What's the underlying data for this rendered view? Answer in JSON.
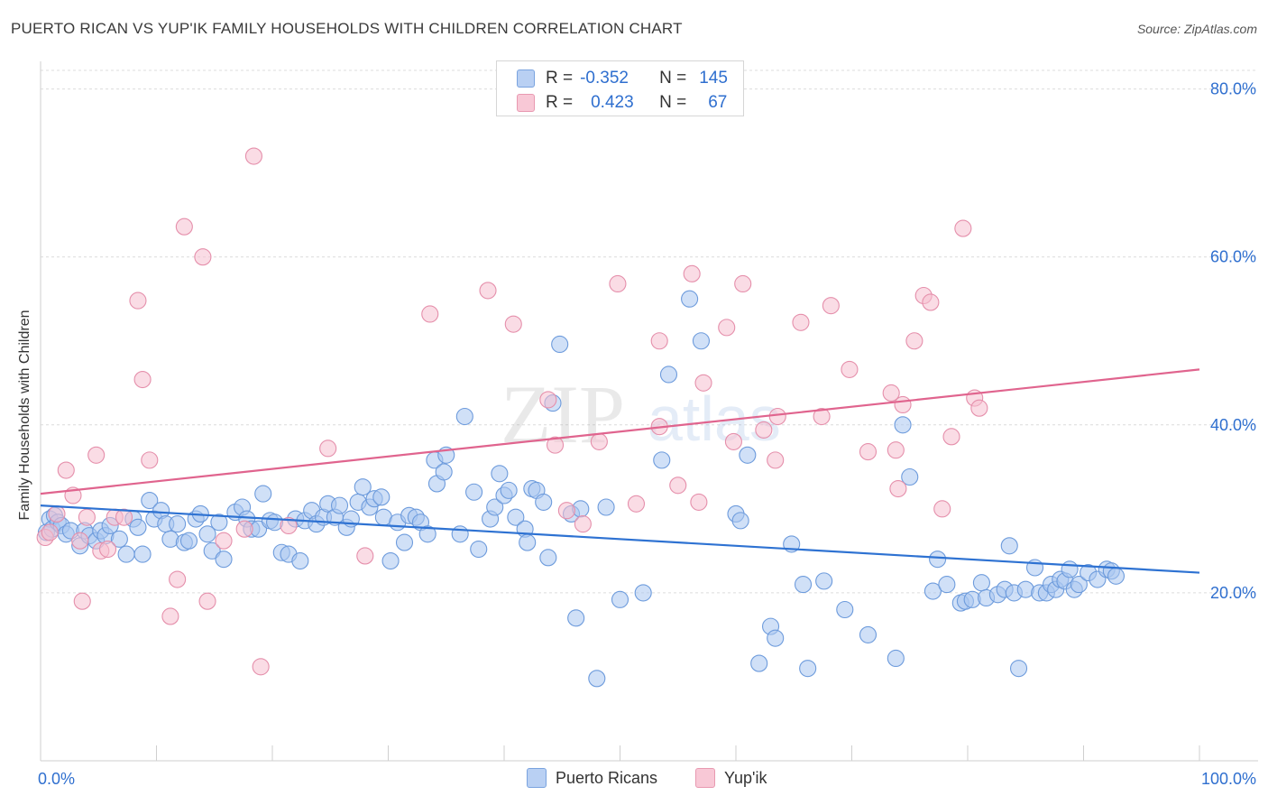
{
  "title": "PUERTO RICAN VS YUP'IK FAMILY HOUSEHOLDS WITH CHILDREN CORRELATION CHART",
  "source": "Source: ZipAtlas.com",
  "watermark": {
    "part1": "ZIP",
    "part2": "atlas"
  },
  "legend": {
    "rows": [
      {
        "r_label": "R =",
        "r_value": "-0.352",
        "n_label": "N =",
        "n_value": "145"
      },
      {
        "r_label": "R =",
        "r_value": "0.423",
        "n_label": "N =",
        "n_value": "67"
      }
    ]
  },
  "bottom_legend": {
    "blue": "Puerto Ricans",
    "pink": "Yup'ik"
  },
  "colors": {
    "blue_fill": "#a9c6f0",
    "blue_stroke": "#6d9bdc",
    "blue_line": "#2e72d2",
    "pink_fill": "#f6bfd0",
    "pink_stroke": "#e58fab",
    "pink_line": "#e0648e",
    "tick_label": "#2f6fcf"
  },
  "chart_data": {
    "type": "scatter",
    "ylabel": "Family Households with Children",
    "x_tick_labels": [
      "0.0%",
      "100.0%"
    ],
    "y_tick_labels": [
      "20.0%",
      "40.0%",
      "60.0%",
      "80.0%"
    ],
    "xlim": [
      0,
      100
    ],
    "ylim": [
      0,
      82
    ],
    "y_ticks": [
      20,
      40,
      60,
      80
    ],
    "grid": true,
    "series": [
      {
        "name": "Puerto Ricans",
        "r": -0.352,
        "n": 145,
        "trend": {
          "x0": 0,
          "y0": 30.4,
          "x1": 100,
          "y1": 22.4
        },
        "points": [
          [
            0.5,
            27.2
          ],
          [
            0.8,
            28.8
          ],
          [
            1.0,
            27.6
          ],
          [
            1.2,
            29.2
          ],
          [
            1.5,
            28.4
          ],
          [
            1.8,
            28.0
          ],
          [
            2.2,
            27.0
          ],
          [
            2.6,
            27.4
          ],
          [
            3.4,
            25.6
          ],
          [
            3.8,
            27.4
          ],
          [
            4.2,
            26.8
          ],
          [
            4.8,
            26.2
          ],
          [
            5.2,
            27.4
          ],
          [
            5.6,
            26.8
          ],
          [
            6.0,
            28.0
          ],
          [
            6.8,
            26.4
          ],
          [
            7.4,
            24.6
          ],
          [
            8.0,
            28.8
          ],
          [
            8.4,
            27.8
          ],
          [
            8.8,
            24.6
          ],
          [
            9.4,
            31.0
          ],
          [
            9.8,
            28.8
          ],
          [
            10.4,
            29.8
          ],
          [
            10.8,
            28.2
          ],
          [
            11.2,
            26.4
          ],
          [
            11.8,
            28.2
          ],
          [
            12.4,
            26.0
          ],
          [
            12.8,
            26.2
          ],
          [
            13.4,
            28.8
          ],
          [
            13.8,
            29.4
          ],
          [
            14.4,
            27.0
          ],
          [
            14.8,
            25.0
          ],
          [
            15.4,
            28.4
          ],
          [
            15.8,
            24.0
          ],
          [
            16.8,
            29.6
          ],
          [
            17.4,
            30.2
          ],
          [
            17.8,
            28.8
          ],
          [
            18.2,
            27.6
          ],
          [
            18.8,
            27.6
          ],
          [
            19.2,
            31.8
          ],
          [
            19.8,
            28.6
          ],
          [
            20.2,
            28.4
          ],
          [
            20.8,
            24.8
          ],
          [
            21.4,
            24.6
          ],
          [
            22.0,
            28.8
          ],
          [
            22.4,
            23.8
          ],
          [
            22.8,
            28.6
          ],
          [
            23.4,
            29.8
          ],
          [
            23.8,
            28.2
          ],
          [
            24.4,
            29.0
          ],
          [
            24.8,
            30.6
          ],
          [
            25.4,
            29.0
          ],
          [
            25.8,
            30.4
          ],
          [
            26.4,
            27.8
          ],
          [
            26.8,
            28.8
          ],
          [
            27.4,
            30.8
          ],
          [
            27.8,
            32.6
          ],
          [
            28.4,
            30.2
          ],
          [
            28.8,
            31.2
          ],
          [
            29.4,
            31.4
          ],
          [
            29.6,
            29.0
          ],
          [
            30.2,
            23.8
          ],
          [
            30.8,
            28.4
          ],
          [
            31.4,
            26.0
          ],
          [
            31.8,
            29.2
          ],
          [
            32.4,
            29.0
          ],
          [
            32.8,
            28.4
          ],
          [
            33.4,
            27.0
          ],
          [
            34.0,
            35.8
          ],
          [
            34.2,
            33.0
          ],
          [
            34.8,
            34.4
          ],
          [
            35.0,
            36.4
          ],
          [
            36.2,
            27.0
          ],
          [
            36.6,
            41.0
          ],
          [
            37.4,
            32.0
          ],
          [
            37.8,
            25.2
          ],
          [
            38.8,
            28.8
          ],
          [
            39.2,
            30.2
          ],
          [
            39.6,
            34.2
          ],
          [
            40.0,
            31.6
          ],
          [
            40.4,
            32.2
          ],
          [
            41.0,
            29.0
          ],
          [
            41.8,
            27.6
          ],
          [
            42.0,
            26.0
          ],
          [
            42.4,
            32.4
          ],
          [
            42.8,
            32.2
          ],
          [
            43.4,
            30.8
          ],
          [
            43.8,
            24.2
          ],
          [
            44.2,
            42.6
          ],
          [
            44.8,
            49.6
          ],
          [
            45.8,
            29.4
          ],
          [
            46.2,
            17.0
          ],
          [
            46.6,
            30.0
          ],
          [
            48.0,
            9.8
          ],
          [
            48.8,
            30.2
          ],
          [
            50.0,
            19.2
          ],
          [
            52.0,
            20.0
          ],
          [
            53.6,
            35.8
          ],
          [
            54.2,
            46.0
          ],
          [
            56.0,
            55.0
          ],
          [
            57.0,
            50.0
          ],
          [
            60.0,
            29.4
          ],
          [
            60.4,
            28.6
          ],
          [
            61.0,
            36.4
          ],
          [
            62.0,
            11.6
          ],
          [
            63.0,
            16.0
          ],
          [
            63.4,
            14.6
          ],
          [
            64.8,
            25.8
          ],
          [
            65.8,
            21.0
          ],
          [
            66.2,
            11.0
          ],
          [
            67.6,
            21.4
          ],
          [
            69.4,
            18.0
          ],
          [
            71.4,
            15.0
          ],
          [
            73.8,
            12.2
          ],
          [
            74.4,
            40.0
          ],
          [
            75.0,
            33.8
          ],
          [
            77.0,
            20.2
          ],
          [
            77.4,
            24.0
          ],
          [
            78.2,
            21.0
          ],
          [
            79.4,
            18.8
          ],
          [
            79.8,
            19.0
          ],
          [
            80.4,
            19.2
          ],
          [
            81.2,
            21.2
          ],
          [
            81.6,
            19.4
          ],
          [
            82.6,
            19.8
          ],
          [
            83.2,
            20.4
          ],
          [
            83.6,
            25.6
          ],
          [
            84.0,
            20.0
          ],
          [
            84.4,
            11.0
          ],
          [
            85.0,
            20.4
          ],
          [
            85.8,
            23.0
          ],
          [
            86.2,
            20.0
          ],
          [
            86.8,
            20.0
          ],
          [
            87.2,
            21.0
          ],
          [
            87.6,
            20.4
          ],
          [
            88.0,
            21.6
          ],
          [
            88.4,
            21.4
          ],
          [
            88.8,
            22.8
          ],
          [
            89.2,
            20.4
          ],
          [
            89.6,
            21.0
          ],
          [
            90.4,
            22.4
          ],
          [
            91.2,
            21.6
          ],
          [
            92.0,
            22.8
          ],
          [
            92.4,
            22.6
          ],
          [
            92.8,
            22.0
          ]
        ]
      },
      {
        "name": "Yup'ik",
        "r": 0.423,
        "n": 67,
        "trend": {
          "x0": 0,
          "y0": 31.8,
          "x1": 100,
          "y1": 46.6
        },
        "points": [
          [
            0.4,
            26.6
          ],
          [
            0.8,
            27.2
          ],
          [
            1.4,
            29.4
          ],
          [
            2.2,
            34.6
          ],
          [
            2.8,
            31.6
          ],
          [
            3.4,
            26.2
          ],
          [
            3.6,
            19.0
          ],
          [
            4.0,
            29.0
          ],
          [
            4.8,
            36.4
          ],
          [
            5.2,
            25.0
          ],
          [
            5.8,
            25.2
          ],
          [
            6.4,
            29.0
          ],
          [
            7.2,
            29.0
          ],
          [
            8.4,
            54.8
          ],
          [
            8.8,
            45.4
          ],
          [
            9.4,
            35.8
          ],
          [
            11.2,
            17.2
          ],
          [
            11.8,
            21.6
          ],
          [
            12.4,
            63.6
          ],
          [
            14.0,
            60.0
          ],
          [
            14.4,
            19.0
          ],
          [
            15.8,
            26.2
          ],
          [
            17.6,
            27.6
          ],
          [
            18.4,
            72.0
          ],
          [
            19.0,
            11.2
          ],
          [
            21.4,
            28.0
          ],
          [
            24.8,
            37.2
          ],
          [
            28.0,
            24.4
          ],
          [
            33.6,
            53.2
          ],
          [
            38.6,
            56.0
          ],
          [
            40.8,
            52.0
          ],
          [
            43.8,
            43.0
          ],
          [
            44.4,
            37.6
          ],
          [
            45.4,
            29.8
          ],
          [
            46.8,
            28.2
          ],
          [
            48.2,
            38.0
          ],
          [
            49.8,
            56.8
          ],
          [
            51.4,
            30.6
          ],
          [
            53.4,
            50.0
          ],
          [
            53.4,
            39.8
          ],
          [
            55.0,
            32.8
          ],
          [
            56.2,
            58.0
          ],
          [
            56.8,
            30.8
          ],
          [
            57.2,
            45.0
          ],
          [
            59.2,
            51.6
          ],
          [
            59.8,
            38.0
          ],
          [
            60.6,
            56.8
          ],
          [
            62.4,
            39.4
          ],
          [
            63.4,
            35.8
          ],
          [
            63.6,
            41.0
          ],
          [
            65.6,
            52.2
          ],
          [
            67.4,
            41.0
          ],
          [
            68.2,
            54.2
          ],
          [
            69.8,
            46.6
          ],
          [
            71.4,
            36.8
          ],
          [
            73.4,
            43.8
          ],
          [
            73.8,
            37.0
          ],
          [
            74.0,
            32.4
          ],
          [
            74.4,
            42.4
          ],
          [
            75.4,
            50.0
          ],
          [
            76.2,
            55.4
          ],
          [
            76.8,
            54.6
          ],
          [
            77.8,
            30.0
          ],
          [
            78.6,
            38.6
          ],
          [
            79.6,
            63.4
          ],
          [
            80.6,
            43.2
          ],
          [
            81.0,
            42.0
          ]
        ]
      }
    ]
  }
}
